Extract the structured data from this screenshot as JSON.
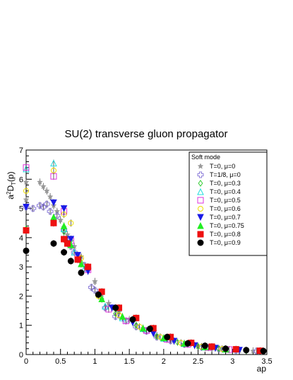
{
  "chart_data": {
    "type": "scatter",
    "title": "SU(2) transverse gluon propagator",
    "xlabel": "ap",
    "ylabel_main": "a",
    "ylabel_sup": "2",
    "ylabel_D": "D",
    "ylabel_sub": "T",
    "ylabel_arg": "(p)",
    "xlim": [
      0,
      3.5
    ],
    "ylim": [
      0,
      7
    ],
    "x_ticks": [
      "0",
      "0.5",
      "1",
      "1.5",
      "2",
      "2.5",
      "3",
      "3.5"
    ],
    "y_ticks": [
      "0",
      "1",
      "2",
      "3",
      "4",
      "5",
      "6",
      "7"
    ],
    "grid": false,
    "legend": {
      "title": "Soft mode",
      "position": "top-right"
    },
    "series": [
      {
        "name": "T=0, μ=0",
        "color": "#999999",
        "marker": "star",
        "points": [
          [
            0,
            5.9
          ],
          [
            0,
            5.3
          ],
          [
            0.2,
            5.9
          ],
          [
            0.25,
            5.75
          ],
          [
            0.3,
            5.6
          ],
          [
            0.35,
            5.4
          ],
          [
            0.4,
            5.1
          ],
          [
            0.45,
            4.9
          ],
          [
            0.5,
            4.6
          ],
          [
            0.55,
            4.35
          ],
          [
            0.6,
            4.1
          ],
          [
            0.7,
            3.7
          ],
          [
            0.8,
            3.35
          ],
          [
            0.9,
            3.0
          ],
          [
            1.0,
            2.5
          ],
          [
            1.1,
            2.05
          ],
          [
            1.2,
            1.75
          ],
          [
            1.35,
            1.45
          ],
          [
            1.5,
            1.2
          ],
          [
            1.7,
            0.9
          ],
          [
            1.9,
            0.65
          ],
          [
            2.1,
            0.48
          ],
          [
            2.3,
            0.35
          ],
          [
            2.5,
            0.27
          ],
          [
            2.7,
            0.21
          ],
          [
            2.9,
            0.17
          ],
          [
            3.1,
            0.14
          ],
          [
            3.3,
            0.12
          ]
        ]
      },
      {
        "name": "T=1/8, μ=0",
        "color": "#8c7cd9",
        "marker": "cross-open",
        "points": [
          [
            0,
            5.05
          ],
          [
            0.1,
            5.0
          ],
          [
            0.2,
            5.1
          ],
          [
            0.25,
            5.05
          ],
          [
            0.3,
            5.15
          ],
          [
            0.35,
            4.9
          ],
          [
            0.45,
            4.75
          ],
          [
            0.55,
            4.25
          ],
          [
            0.6,
            3.95
          ],
          [
            0.65,
            3.7
          ],
          [
            0.7,
            3.5
          ],
          [
            0.75,
            3.3
          ],
          [
            0.85,
            3.05
          ],
          [
            0.95,
            2.3
          ],
          [
            1.0,
            2.2
          ],
          [
            1.15,
            1.6
          ],
          [
            1.3,
            1.3
          ],
          [
            1.45,
            1.15
          ],
          [
            1.6,
            0.95
          ],
          [
            1.75,
            0.8
          ],
          [
            1.9,
            0.6
          ],
          [
            2.1,
            0.47
          ],
          [
            2.3,
            0.35
          ],
          [
            2.55,
            0.25
          ],
          [
            2.8,
            0.19
          ],
          [
            3.05,
            0.14
          ],
          [
            3.35,
            0.12
          ]
        ]
      },
      {
        "name": "T=0, μ=0.3",
        "color": "#33cc33",
        "marker": "diamond-open",
        "points": [
          [
            0.4,
            4.55
          ],
          [
            0.55,
            4.2
          ],
          [
            0.65,
            3.9
          ],
          [
            0.8,
            3.15
          ],
          [
            1.1,
            1.9
          ],
          [
            1.3,
            1.4
          ],
          [
            1.6,
            1.0
          ],
          [
            1.9,
            0.62
          ],
          [
            2.2,
            0.42
          ],
          [
            2.5,
            0.28
          ],
          [
            2.8,
            0.2
          ],
          [
            3.2,
            0.13
          ]
        ]
      },
      {
        "name": "T=0, μ=0.4",
        "color": "#22dddd",
        "marker": "triangle-open",
        "points": [
          [
            0,
            6.35
          ],
          [
            0.4,
            6.55
          ],
          [
            0.55,
            4.3
          ],
          [
            0.7,
            3.5
          ],
          [
            0.85,
            2.95
          ],
          [
            1.15,
            1.65
          ],
          [
            1.4,
            1.25
          ],
          [
            1.7,
            0.88
          ],
          [
            2.0,
            0.55
          ],
          [
            2.3,
            0.37
          ],
          [
            2.6,
            0.25
          ],
          [
            2.9,
            0.18
          ]
        ]
      },
      {
        "name": "T=0, μ=0.5",
        "color": "#dd33dd",
        "marker": "square-open",
        "points": [
          [
            0,
            6.4
          ],
          [
            0.4,
            6.1
          ],
          [
            0.55,
            4.9
          ],
          [
            0.65,
            3.9
          ],
          [
            0.75,
            3.3
          ],
          [
            0.9,
            2.9
          ],
          [
            1.2,
            1.55
          ],
          [
            1.45,
            1.15
          ],
          [
            1.75,
            0.82
          ],
          [
            2.05,
            0.52
          ],
          [
            2.35,
            0.35
          ],
          [
            2.65,
            0.24
          ],
          [
            2.95,
            0.17
          ]
        ]
      },
      {
        "name": "T=0, μ=0.6",
        "color": "#eedd00",
        "marker": "circle-open",
        "points": [
          [
            0,
            5.6
          ],
          [
            0.4,
            6.3
          ],
          [
            0.55,
            4.8
          ],
          [
            0.65,
            4.5
          ],
          [
            0.8,
            3.3
          ],
          [
            1.05,
            2.0
          ],
          [
            1.35,
            1.35
          ],
          [
            1.65,
            0.95
          ],
          [
            1.95,
            0.6
          ],
          [
            2.25,
            0.4
          ],
          [
            2.55,
            0.27
          ],
          [
            2.85,
            0.19
          ]
        ]
      },
      {
        "name": "T=0, μ=0.7",
        "color": "#1a1ae6",
        "marker": "triangle-down",
        "points": [
          [
            0,
            5.05
          ],
          [
            0.4,
            5.2
          ],
          [
            0.55,
            5.0
          ],
          [
            0.65,
            3.95
          ],
          [
            0.75,
            3.4
          ],
          [
            0.9,
            2.85
          ],
          [
            1.25,
            1.6
          ],
          [
            1.55,
            1.1
          ],
          [
            1.85,
            0.72
          ],
          [
            2.15,
            0.46
          ],
          [
            2.45,
            0.31
          ],
          [
            2.75,
            0.22
          ],
          [
            3.1,
            0.15
          ]
        ]
      },
      {
        "name": "T=0, μ=0.75",
        "color": "#22ee22",
        "marker": "triangle",
        "points": [
          [
            0,
            4.3
          ],
          [
            0.4,
            4.7
          ],
          [
            0.55,
            4.4
          ],
          [
            0.65,
            3.75
          ],
          [
            0.8,
            3.1
          ],
          [
            1.1,
            1.9
          ],
          [
            1.4,
            1.3
          ],
          [
            1.7,
            0.9
          ],
          [
            2.0,
            0.57
          ],
          [
            2.3,
            0.38
          ],
          [
            2.6,
            0.26
          ],
          [
            2.9,
            0.18
          ]
        ]
      },
      {
        "name": "T=0, μ=0.8",
        "color": "#ee1111",
        "marker": "square",
        "points": [
          [
            0,
            4.25
          ],
          [
            0.4,
            4.5
          ],
          [
            0.55,
            3.95
          ],
          [
            0.6,
            3.8
          ],
          [
            0.75,
            3.25
          ],
          [
            0.9,
            3.0
          ],
          [
            1.1,
            2.15
          ],
          [
            1.35,
            1.6
          ],
          [
            1.6,
            1.25
          ],
          [
            1.85,
            0.9
          ],
          [
            2.1,
            0.6
          ],
          [
            2.4,
            0.4
          ],
          [
            2.7,
            0.27
          ],
          [
            3.05,
            0.18
          ],
          [
            3.4,
            0.13
          ]
        ]
      },
      {
        "name": "T=0, μ=0.9",
        "color": "#000000",
        "marker": "circle",
        "points": [
          [
            0,
            3.55
          ],
          [
            0.4,
            3.8
          ],
          [
            0.55,
            3.5
          ],
          [
            0.65,
            3.2
          ],
          [
            0.8,
            2.8
          ],
          [
            1.05,
            2.05
          ],
          [
            1.3,
            1.6
          ],
          [
            1.55,
            1.2
          ],
          [
            1.8,
            0.88
          ],
          [
            2.05,
            0.6
          ],
          [
            2.35,
            0.38
          ],
          [
            2.6,
            0.3
          ],
          [
            2.9,
            0.2
          ],
          [
            3.2,
            0.15
          ],
          [
            3.45,
            0.12
          ]
        ]
      }
    ]
  }
}
